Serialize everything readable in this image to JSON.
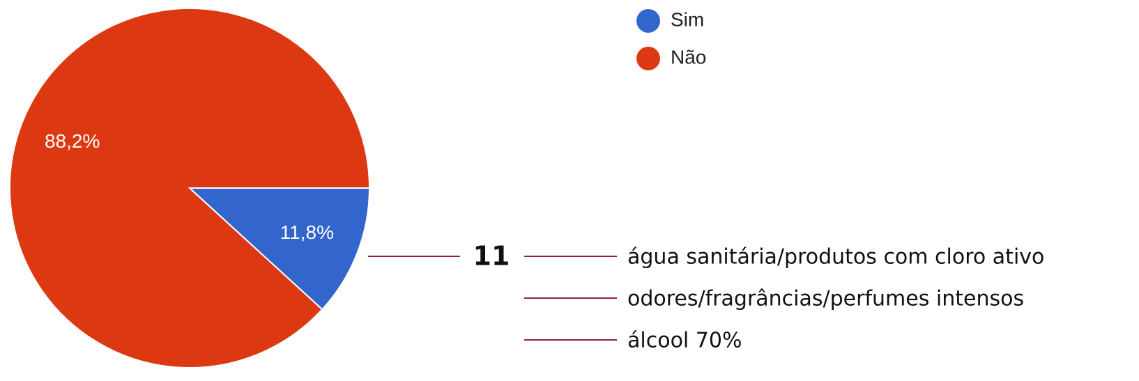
{
  "chart_data": {
    "type": "pie",
    "categories": [
      "Sim",
      "Não"
    ],
    "values": [
      11.8,
      88.2
    ],
    "value_labels": [
      "11,8%",
      "88,2%"
    ],
    "colors": [
      "#3366cc",
      "#dc3912"
    ],
    "legend": "top-right"
  },
  "annotation": {
    "count": 11,
    "items": [
      "água sanitária/produtos com cloro ativo",
      "odores/fragrâncias/perfumes intensos",
      "álcool 70%"
    ]
  }
}
